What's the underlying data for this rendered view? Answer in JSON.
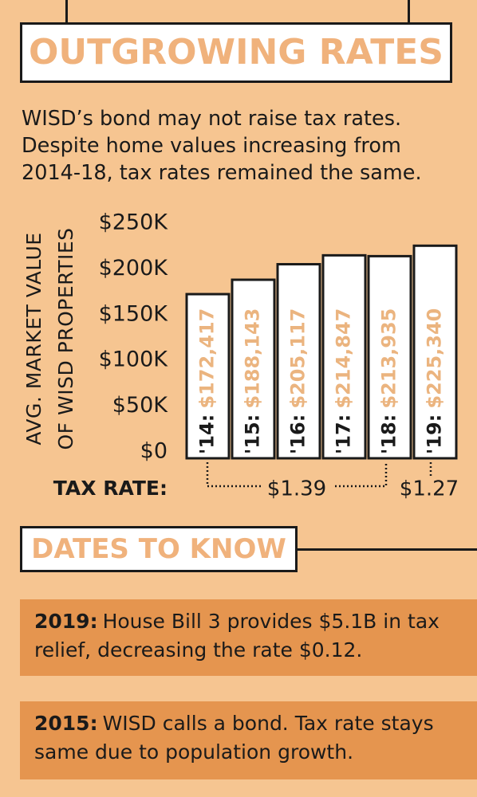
{
  "chart_data": {
    "type": "bar",
    "title": "OUTGROWING RATES",
    "subtitle": "WISD’s bond may not raise tax rates. Despite home values increasing from 2014-18, tax rates remained the same.",
    "ylabel": [
      "AVG. MARKET VALUE",
      "OF WISD PROPERTIES"
    ],
    "categories": [
      "'14:",
      "'15:",
      "'16:",
      "'17:",
      "'18:",
      "'19:"
    ],
    "values": [
      172417,
      188143,
      205117,
      214847,
      213935,
      225340
    ],
    "value_labels": [
      "$172,417",
      "$188,143",
      "$205,117",
      "$214,847",
      "$213,935",
      "$225,340"
    ],
    "color": "#ffffff",
    "label_color": "#ebb47f",
    "ylim": [
      0,
      250000
    ],
    "yticks": [
      {
        "value": 0,
        "label": "$0"
      },
      {
        "value": 50000,
        "label": "$50K"
      },
      {
        "value": 100000,
        "label": "$100K"
      },
      {
        "value": 150000,
        "label": "$150K"
      },
      {
        "value": 200000,
        "label": "$200K"
      },
      {
        "value": 250000,
        "label": "$250K"
      }
    ],
    "tax_rate_label": "TAX RATE:",
    "tax_rates": [
      "$1.39",
      "$1.27"
    ]
  },
  "dates_to_know": {
    "title": "DATES TO KNOW",
    "items": [
      {
        "year": "2019:",
        "text": "House Bill 3 provides $5.1B in tax relief, decreasing the rate $0.12."
      },
      {
        "year": "2015:",
        "text": "WISD calls a bond. Tax rate stays same due to population growth."
      }
    ]
  }
}
